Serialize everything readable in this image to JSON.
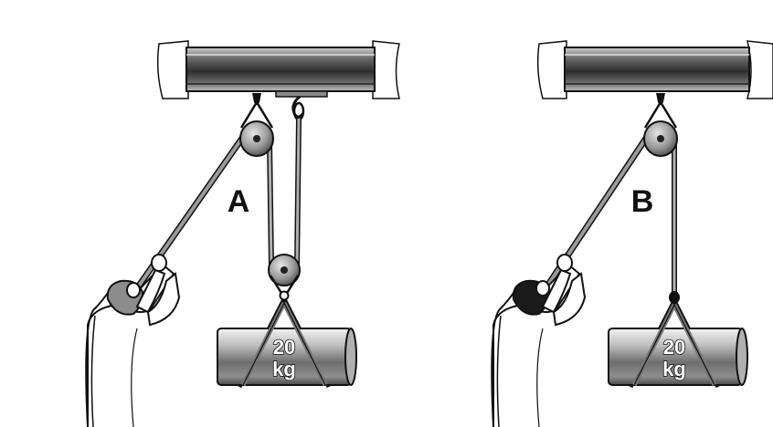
{
  "systems": [
    {
      "label": "A",
      "weight_value": "20",
      "weight_unit": "kg",
      "pulleys": 2
    },
    {
      "label": "B",
      "weight_value": "20",
      "weight_unit": "kg",
      "pulleys": 1
    }
  ],
  "colors": {
    "outline": "#111111",
    "beam_dark": "#3a3a3a",
    "beam_light": "#cfcfcf",
    "pulley": "#9a9a9a",
    "rope": "#555555",
    "skin": "#ffffff"
  }
}
